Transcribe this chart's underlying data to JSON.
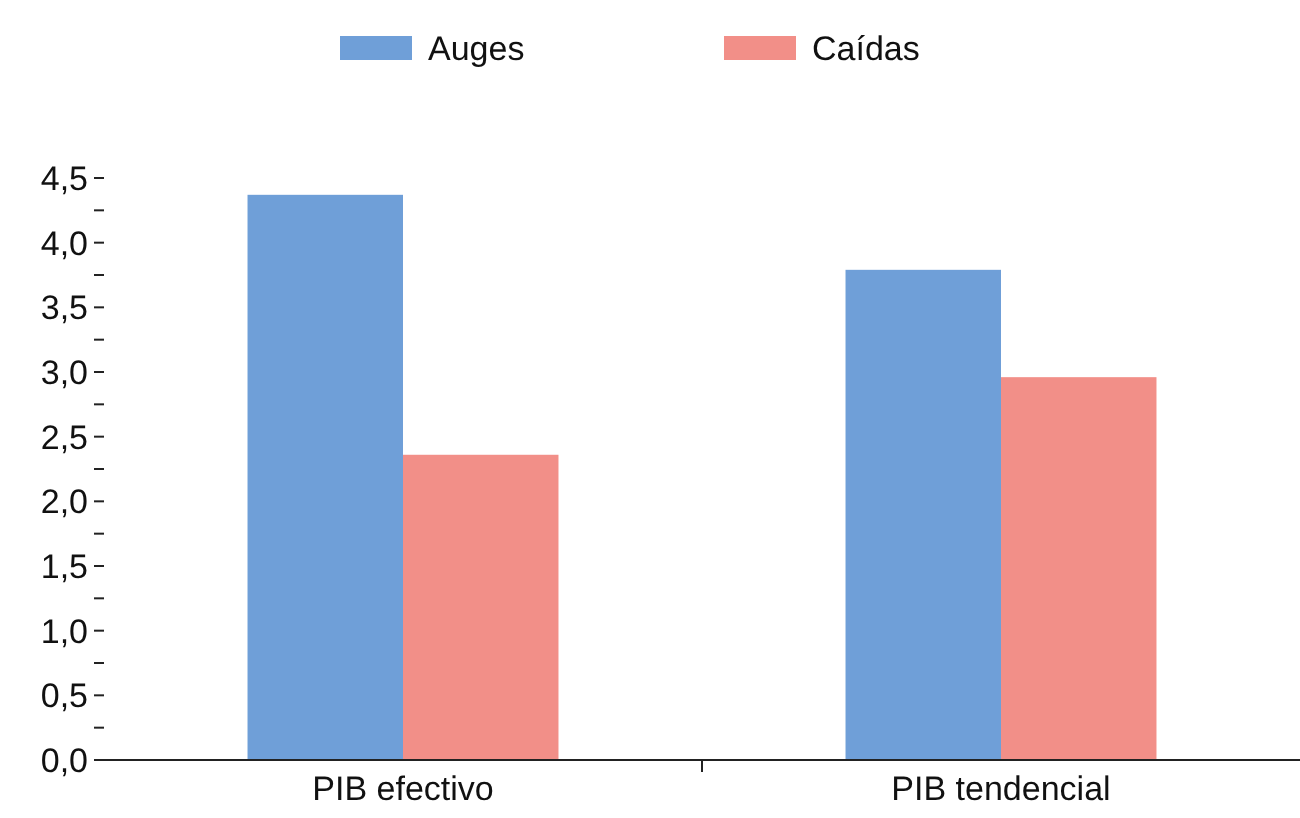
{
  "chart_data": {
    "type": "bar",
    "categories": [
      "PIB efectivo",
      "PIB tendencial"
    ],
    "series": [
      {
        "name": "Auges",
        "color": "#6f9fd8",
        "values": [
          4.37,
          3.79
        ]
      },
      {
        "name": "Caídas",
        "color": "#f28f88",
        "values": [
          2.36,
          2.96
        ]
      }
    ],
    "ylim": [
      0,
      4.5
    ],
    "yticks": [
      {
        "value": 0,
        "label": "0,0"
      },
      {
        "value": 0.25,
        "label": null
      },
      {
        "value": 0.5,
        "label": "0,5"
      },
      {
        "value": 0.75,
        "label": null
      },
      {
        "value": 1,
        "label": "1,0"
      },
      {
        "value": 1.25,
        "label": null
      },
      {
        "value": 1.5,
        "label": "1,5"
      },
      {
        "value": 1.75,
        "label": null
      },
      {
        "value": 2,
        "label": "2,0"
      },
      {
        "value": 2.25,
        "label": null
      },
      {
        "value": 2.5,
        "label": "2,5"
      },
      {
        "value": 2.75,
        "label": null
      },
      {
        "value": 3,
        "label": "3,0"
      },
      {
        "value": 3.25,
        "label": null
      },
      {
        "value": 3.5,
        "label": "3,5"
      },
      {
        "value": 3.75,
        "label": null
      },
      {
        "value": 4,
        "label": "4,0"
      },
      {
        "value": 4.25,
        "label": null
      },
      {
        "value": 4.5,
        "label": "4,5"
      }
    ],
    "grid": false,
    "legend": "top"
  }
}
